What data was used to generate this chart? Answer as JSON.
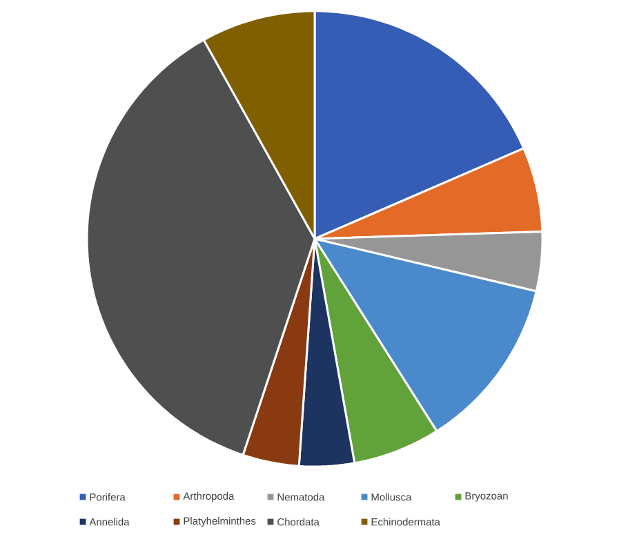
{
  "chart_data": {
    "type": "pie",
    "categories": [
      "Porifera",
      "Arthropoda",
      "Nematoda",
      "Mollusca",
      "Bryozoan",
      "Annelida",
      "Platyhelminthes",
      "Chordata",
      "Echinodermata"
    ],
    "values": [
      18.5,
      6,
      4.2,
      12.3,
      6.2,
      3.9,
      4,
      36.8,
      8.1
    ],
    "colors": [
      "#365db5",
      "#e46a28",
      "#969696",
      "#4a8acc",
      "#62a23a",
      "#1d3461",
      "#8a3a10",
      "#4f4f4f",
      "#7f5f00"
    ],
    "legend": "bottom"
  }
}
